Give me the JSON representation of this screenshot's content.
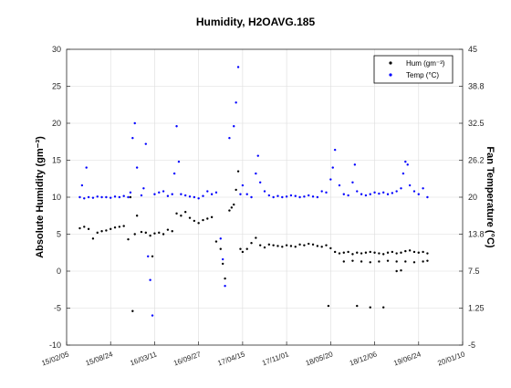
{
  "chart_data": {
    "type": "scatter",
    "title": "Humidity, H2OAVG.185",
    "ylabel_left": "Absolute Humidity (gm⁻³)",
    "ylabel_right": "Fan Temperature (°C)",
    "xlabel": "",
    "x_tick_labels": [
      "15/02/05",
      "15/08/24",
      "16/03/11",
      "16/09/27",
      "17/04/15",
      "17/11/01",
      "18/05/20",
      "18/12/06",
      "19/06/24",
      "20/01/10"
    ],
    "ylim_left": [
      -10,
      30
    ],
    "y_ticks_left": [
      -10,
      -5,
      0,
      5,
      10,
      15,
      20,
      25,
      30
    ],
    "ylim_right": [
      -5,
      45
    ],
    "y_ticks_right": [
      "-5",
      "1.25",
      "7.5",
      "13.8",
      "20",
      "26.2",
      "32.5",
      "38.8",
      "45"
    ],
    "grid": true,
    "legend_position": "top-right",
    "series": [
      {
        "name": "Hum (gm⁻³)",
        "color": "#000000",
        "axis": "left",
        "points": [
          [
            0.3,
            5.8
          ],
          [
            0.4,
            6.0
          ],
          [
            0.5,
            5.7
          ],
          [
            0.6,
            4.4
          ],
          [
            0.7,
            5.2
          ],
          [
            0.8,
            5.4
          ],
          [
            0.9,
            5.5
          ],
          [
            1.0,
            5.7
          ],
          [
            1.1,
            5.9
          ],
          [
            1.2,
            6.0
          ],
          [
            1.3,
            6.1
          ],
          [
            1.4,
            4.3
          ],
          [
            1.45,
            10.0
          ],
          [
            1.5,
            -5.4
          ],
          [
            1.55,
            5.0
          ],
          [
            1.6,
            7.5
          ],
          [
            1.7,
            5.3
          ],
          [
            1.8,
            5.2
          ],
          [
            1.9,
            4.8
          ],
          [
            1.95,
            2.0
          ],
          [
            2.0,
            5.1
          ],
          [
            2.1,
            5.2
          ],
          [
            2.2,
            5.0
          ],
          [
            2.3,
            5.6
          ],
          [
            2.4,
            5.4
          ],
          [
            2.5,
            7.8
          ],
          [
            2.6,
            7.5
          ],
          [
            2.7,
            8.0
          ],
          [
            2.8,
            7.2
          ],
          [
            2.9,
            6.8
          ],
          [
            3.0,
            6.5
          ],
          [
            3.1,
            6.9
          ],
          [
            3.2,
            7.1
          ],
          [
            3.3,
            7.3
          ],
          [
            3.4,
            4.0
          ],
          [
            3.5,
            3.0
          ],
          [
            3.55,
            1.0
          ],
          [
            3.6,
            -1.0
          ],
          [
            3.7,
            8.2
          ],
          [
            3.75,
            8.6
          ],
          [
            3.8,
            9.0
          ],
          [
            3.85,
            11.0
          ],
          [
            3.9,
            13.5
          ],
          [
            3.95,
            3.0
          ],
          [
            4.0,
            2.6
          ],
          [
            4.1,
            3.0
          ],
          [
            4.2,
            3.8
          ],
          [
            4.3,
            4.5
          ],
          [
            4.4,
            3.5
          ],
          [
            4.5,
            3.2
          ],
          [
            4.6,
            3.6
          ],
          [
            4.7,
            3.5
          ],
          [
            4.8,
            3.4
          ],
          [
            4.9,
            3.3
          ],
          [
            5.0,
            3.5
          ],
          [
            5.1,
            3.4
          ],
          [
            5.2,
            3.3
          ],
          [
            5.3,
            3.6
          ],
          [
            5.4,
            3.5
          ],
          [
            5.5,
            3.7
          ],
          [
            5.6,
            3.6
          ],
          [
            5.7,
            3.4
          ],
          [
            5.8,
            3.3
          ],
          [
            5.9,
            3.5
          ],
          [
            6.0,
            3.1
          ],
          [
            6.1,
            2.6
          ],
          [
            6.2,
            2.4
          ],
          [
            6.3,
            2.5
          ],
          [
            6.4,
            2.6
          ],
          [
            6.5,
            2.3
          ],
          [
            6.6,
            2.5
          ],
          [
            6.7,
            2.4
          ],
          [
            6.8,
            2.5
          ],
          [
            6.9,
            2.6
          ],
          [
            7.0,
            2.5
          ],
          [
            7.1,
            2.4
          ],
          [
            7.2,
            2.3
          ],
          [
            7.3,
            2.5
          ],
          [
            7.4,
            2.6
          ],
          [
            7.5,
            2.4
          ],
          [
            7.6,
            2.5
          ],
          [
            7.7,
            2.7
          ],
          [
            7.8,
            2.8
          ],
          [
            7.9,
            2.6
          ],
          [
            8.0,
            2.5
          ],
          [
            8.1,
            2.6
          ],
          [
            8.2,
            2.4
          ],
          [
            6.3,
            1.3
          ],
          [
            6.5,
            1.4
          ],
          [
            6.7,
            1.3
          ],
          [
            6.9,
            1.2
          ],
          [
            7.1,
            1.3
          ],
          [
            7.3,
            1.4
          ],
          [
            7.5,
            1.3
          ],
          [
            7.7,
            1.3
          ],
          [
            7.9,
            1.2
          ],
          [
            8.1,
            1.3
          ],
          [
            8.2,
            1.4
          ],
          [
            5.95,
            -4.7
          ],
          [
            6.6,
            -4.7
          ],
          [
            6.9,
            -4.9
          ],
          [
            7.2,
            -4.9
          ],
          [
            7.6,
            0.1
          ],
          [
            7.5,
            0.0
          ]
        ]
      },
      {
        "name": "Temp (°C)",
        "color": "#0000ff",
        "axis": "right",
        "points": [
          [
            0.3,
            20.0
          ],
          [
            0.35,
            22.0
          ],
          [
            0.4,
            19.8
          ],
          [
            0.45,
            25.0
          ],
          [
            0.5,
            20.0
          ],
          [
            0.6,
            19.9
          ],
          [
            0.7,
            20.1
          ],
          [
            0.8,
            20.0
          ],
          [
            0.9,
            20.0
          ],
          [
            1.0,
            19.9
          ],
          [
            1.1,
            20.1
          ],
          [
            1.2,
            20.0
          ],
          [
            1.3,
            20.2
          ],
          [
            1.4,
            20.0
          ],
          [
            1.45,
            20.8
          ],
          [
            1.5,
            30.0
          ],
          [
            1.55,
            32.5
          ],
          [
            1.6,
            25.0
          ],
          [
            1.7,
            20.3
          ],
          [
            1.75,
            21.5
          ],
          [
            1.8,
            29.0
          ],
          [
            1.85,
            10.0
          ],
          [
            1.9,
            6.0
          ],
          [
            1.95,
            0.0
          ],
          [
            2.0,
            20.5
          ],
          [
            2.1,
            20.8
          ],
          [
            2.2,
            21.0
          ],
          [
            2.3,
            20.2
          ],
          [
            2.4,
            20.5
          ],
          [
            2.45,
            24.0
          ],
          [
            2.5,
            32.0
          ],
          [
            2.55,
            26.0
          ],
          [
            2.6,
            20.5
          ],
          [
            2.7,
            20.3
          ],
          [
            2.8,
            20.1
          ],
          [
            2.9,
            20.0
          ],
          [
            3.0,
            19.8
          ],
          [
            3.1,
            20.2
          ],
          [
            3.2,
            21.0
          ],
          [
            3.3,
            20.5
          ],
          [
            3.4,
            20.8
          ],
          [
            3.5,
            13.0
          ],
          [
            3.55,
            9.5
          ],
          [
            3.6,
            5.0
          ],
          [
            3.7,
            30.0
          ],
          [
            3.8,
            32.0
          ],
          [
            3.85,
            36.0
          ],
          [
            3.9,
            42.0
          ],
          [
            3.95,
            20.5
          ],
          [
            4.0,
            22.0
          ],
          [
            4.1,
            20.5
          ],
          [
            4.2,
            20.0
          ],
          [
            4.3,
            24.0
          ],
          [
            4.35,
            27.0
          ],
          [
            4.4,
            22.5
          ],
          [
            4.5,
            21.0
          ],
          [
            4.6,
            20.3
          ],
          [
            4.7,
            20.0
          ],
          [
            4.8,
            20.2
          ],
          [
            4.9,
            20.0
          ],
          [
            5.0,
            20.1
          ],
          [
            5.1,
            20.3
          ],
          [
            5.2,
            20.2
          ],
          [
            5.3,
            20.0
          ],
          [
            5.4,
            20.1
          ],
          [
            5.5,
            20.3
          ],
          [
            5.6,
            20.1
          ],
          [
            5.7,
            20.0
          ],
          [
            5.8,
            21.0
          ],
          [
            5.9,
            20.8
          ],
          [
            6.0,
            23.0
          ],
          [
            6.05,
            25.0
          ],
          [
            6.1,
            28.0
          ],
          [
            6.2,
            22.0
          ],
          [
            6.3,
            20.5
          ],
          [
            6.4,
            20.3
          ],
          [
            6.5,
            22.5
          ],
          [
            6.55,
            25.5
          ],
          [
            6.6,
            21.0
          ],
          [
            6.7,
            20.5
          ],
          [
            6.8,
            20.3
          ],
          [
            6.9,
            20.5
          ],
          [
            7.0,
            20.8
          ],
          [
            7.1,
            20.6
          ],
          [
            7.2,
            20.8
          ],
          [
            7.3,
            20.5
          ],
          [
            7.4,
            20.7
          ],
          [
            7.5,
            21.0
          ],
          [
            7.6,
            21.5
          ],
          [
            7.65,
            24.0
          ],
          [
            7.7,
            26.0
          ],
          [
            7.75,
            25.5
          ],
          [
            7.8,
            22.0
          ],
          [
            7.9,
            21.0
          ],
          [
            8.0,
            20.5
          ],
          [
            8.1,
            21.5
          ],
          [
            8.2,
            20.0
          ]
        ]
      }
    ]
  }
}
